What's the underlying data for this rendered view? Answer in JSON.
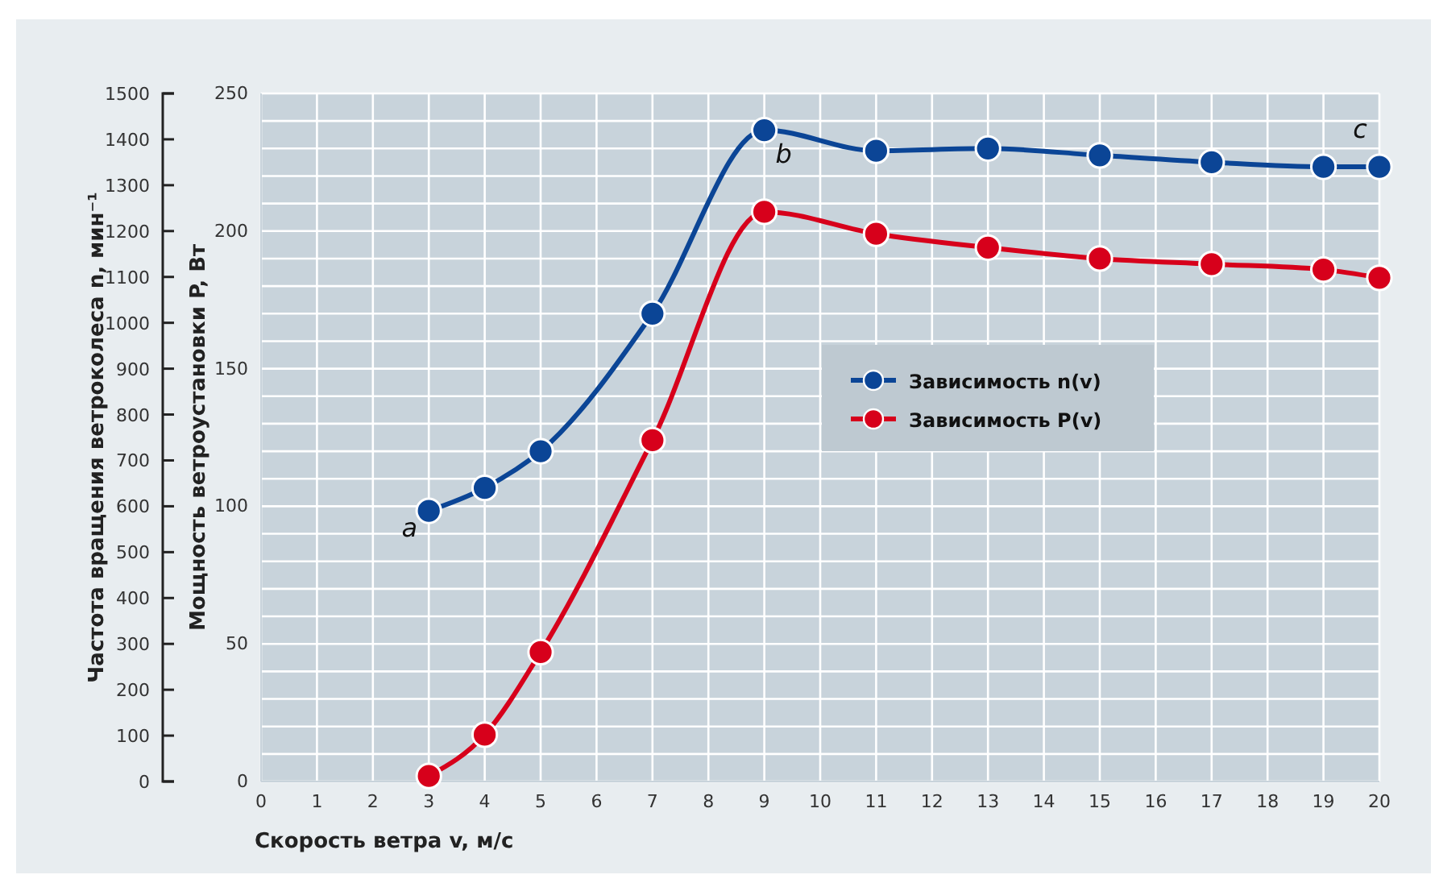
{
  "chart_data": {
    "type": "line",
    "xlabel": "Скорость ветра v, м/с",
    "ylabel": "Мощность ветроустановки P, Вт",
    "y2label": "Частота вращения ветроколеса n, мин⁻¹",
    "x": [
      3,
      4,
      5,
      7,
      9,
      11,
      13,
      15,
      17,
      19,
      20
    ],
    "xlim": [
      0,
      20
    ],
    "xticks": [
      0,
      1,
      2,
      3,
      4,
      5,
      6,
      7,
      8,
      9,
      10,
      11,
      12,
      13,
      14,
      15,
      16,
      17,
      18,
      19,
      20
    ],
    "ylim": [
      0,
      250
    ],
    "yticks": [
      0,
      {
        "value": 10,
        "label": null
      },
      {
        "value": 20,
        "label": null
      },
      {
        "value": 30,
        "label": null
      },
      {
        "value": 40,
        "label": null
      },
      50,
      {
        "value": 60,
        "label": null
      },
      {
        "value": 70,
        "label": null
      },
      {
        "value": 80,
        "label": null
      },
      {
        "value": 90,
        "label": null
      },
      100,
      {
        "value": 110,
        "label": null
      },
      {
        "value": 120,
        "label": null
      },
      {
        "value": 130,
        "label": null
      },
      {
        "value": 140,
        "label": null
      },
      150,
      {
        "value": 160,
        "label": null
      },
      {
        "value": 170,
        "label": null
      },
      {
        "value": 180,
        "label": null
      },
      {
        "value": 190,
        "label": null
      },
      200,
      {
        "value": 210,
        "label": null
      },
      {
        "value": 220,
        "label": null
      },
      {
        "value": 230,
        "label": null
      },
      {
        "value": 240,
        "label": null
      },
      250
    ],
    "y2lim": [
      0,
      1500
    ],
    "y2ticks": [
      0,
      100,
      200,
      300,
      400,
      500,
      600,
      700,
      800,
      900,
      1000,
      1100,
      1200,
      1300,
      1400,
      1500
    ],
    "series": [
      {
        "name": "Зависимость n(v)",
        "color": "#0b4596",
        "axis": "y2",
        "values": [
          590,
          640,
          720,
          1020,
          1420,
          1375,
          1380,
          1365,
          1350,
          1340,
          1340
        ]
      },
      {
        "name": "Зависимость P(v)",
        "color": "#d7001b",
        "values": [
          2,
          17,
          47,
          124,
          207,
          199,
          194,
          190,
          188,
          186,
          183
        ]
      }
    ],
    "annotations": [
      "a",
      "b",
      "c"
    ],
    "grid": true,
    "legend": "right",
    "marker": "circle",
    "line_style": "solid"
  }
}
